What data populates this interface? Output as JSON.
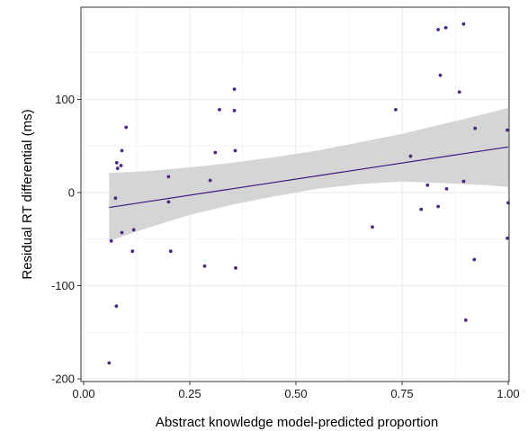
{
  "chart_data": {
    "type": "scatter",
    "xlabel": "Abstract knowledge model-predicted proportion",
    "ylabel": "Residual RT differential (ms)",
    "xlim": [
      0.0,
      1.0
    ],
    "ylim": [
      -200,
      200
    ],
    "x_ticks": [
      0.0,
      0.25,
      0.5,
      0.75,
      1.0
    ],
    "x_tick_labels": [
      "0.00",
      "0.25",
      "0.50",
      "0.75",
      "1.00"
    ],
    "y_ticks": [
      -200,
      -100,
      0,
      100
    ],
    "y_tick_labels": [
      "-200",
      "-100",
      "0",
      "100"
    ],
    "grid": true,
    "points": [
      {
        "x": 0.06,
        "y": -183
      },
      {
        "x": 0.065,
        "y": -52
      },
      {
        "x": 0.075,
        "y": -6
      },
      {
        "x": 0.077,
        "y": -122
      },
      {
        "x": 0.078,
        "y": 32
      },
      {
        "x": 0.08,
        "y": 26
      },
      {
        "x": 0.088,
        "y": 29
      },
      {
        "x": 0.09,
        "y": 45
      },
      {
        "x": 0.09,
        "y": -43
      },
      {
        "x": 0.1,
        "y": 70
      },
      {
        "x": 0.115,
        "y": -63
      },
      {
        "x": 0.118,
        "y": -40
      },
      {
        "x": 0.2,
        "y": 17
      },
      {
        "x": 0.2,
        "y": -10
      },
      {
        "x": 0.205,
        "y": -63
      },
      {
        "x": 0.285,
        "y": -79
      },
      {
        "x": 0.298,
        "y": 13
      },
      {
        "x": 0.31,
        "y": 43
      },
      {
        "x": 0.32,
        "y": 89
      },
      {
        "x": 0.355,
        "y": 111
      },
      {
        "x": 0.355,
        "y": 88
      },
      {
        "x": 0.357,
        "y": 45
      },
      {
        "x": 0.358,
        "y": -81
      },
      {
        "x": 0.68,
        "y": -37
      },
      {
        "x": 0.735,
        "y": 89
      },
      {
        "x": 0.77,
        "y": 39
      },
      {
        "x": 0.795,
        "y": -18
      },
      {
        "x": 0.81,
        "y": 8
      },
      {
        "x": 0.835,
        "y": 175
      },
      {
        "x": 0.835,
        "y": -15
      },
      {
        "x": 0.84,
        "y": 126
      },
      {
        "x": 0.853,
        "y": 177
      },
      {
        "x": 0.855,
        "y": 4
      },
      {
        "x": 0.885,
        "y": 108
      },
      {
        "x": 0.895,
        "y": 181
      },
      {
        "x": 0.895,
        "y": 12
      },
      {
        "x": 0.9,
        "y": -137
      },
      {
        "x": 0.92,
        "y": -72
      },
      {
        "x": 0.922,
        "y": 69
      },
      {
        "x": 0.998,
        "y": 67
      },
      {
        "x": 0.998,
        "y": -49
      },
      {
        "x": 1.0,
        "y": -11
      }
    ],
    "trend_line": {
      "x": [
        0.06,
        1.0
      ],
      "y": [
        -16,
        49
      ]
    },
    "confidence_band": {
      "x": [
        0.06,
        0.15,
        0.25,
        0.35,
        0.45,
        0.55,
        0.65,
        0.75,
        0.85,
        0.95,
        1.0
      ],
      "lower": [
        -52,
        -38,
        -24,
        -13,
        -4,
        4,
        9,
        12,
        10,
        8,
        6
      ],
      "upper": [
        21,
        23,
        27,
        32,
        38,
        45,
        54,
        63,
        74,
        85,
        91
      ]
    },
    "colors": {
      "points": "#4b2a7b",
      "line": "#3b1780",
      "band": "#d3d3d3",
      "grid": "#ebebeb",
      "panel_border": "#333333",
      "tick_label": "#1a1a1a"
    }
  }
}
